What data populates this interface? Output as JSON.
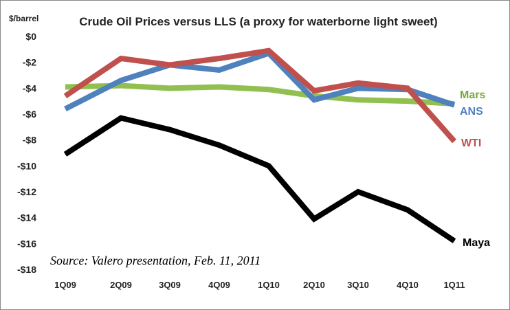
{
  "chart_data": {
    "type": "line",
    "title": "Crude Oil Prices versus LLS (a proxy for waterborne light sweet)",
    "ylabel": "$/barrel",
    "xlabel": "",
    "categories": [
      "1Q09",
      "2Q09",
      "3Q09",
      "4Q09",
      "1Q10",
      "2Q10",
      "3Q10",
      "4Q10",
      "1Q11"
    ],
    "ylim": [
      -18,
      0
    ],
    "yticks": [
      0,
      -2,
      -4,
      -6,
      -8,
      -10,
      -12,
      -14,
      -16,
      -18
    ],
    "ytick_labels": [
      "$0",
      "-$2",
      "-$4",
      "-$6",
      "-$8",
      "-$10",
      "-$12",
      "-$14",
      "-$16",
      "-$18"
    ],
    "grid": false,
    "series": [
      {
        "name": "Mars",
        "color": "#92c050",
        "values": [
          -3.9,
          -3.8,
          -4.0,
          -3.9,
          -4.1,
          -4.6,
          -4.9,
          -5.0,
          -5.2
        ]
      },
      {
        "name": "ANS",
        "color": "#4f81bd",
        "values": [
          -5.6,
          -3.4,
          -2.2,
          -2.6,
          -1.3,
          -4.9,
          -4.0,
          -4.1,
          -5.3
        ]
      },
      {
        "name": "WTI",
        "color": "#c0504d",
        "values": [
          -4.6,
          -1.7,
          -2.2,
          -1.7,
          -1.1,
          -4.2,
          -3.6,
          -4.0,
          -8.1
        ]
      },
      {
        "name": "Maya",
        "color": "#000000",
        "values": [
          -9.1,
          -6.3,
          -7.2,
          -8.4,
          -10.0,
          -14.1,
          -12.0,
          -13.4,
          -15.8
        ]
      }
    ],
    "annotation": "Source: Valero presentation, Feb. 11, 2011"
  }
}
